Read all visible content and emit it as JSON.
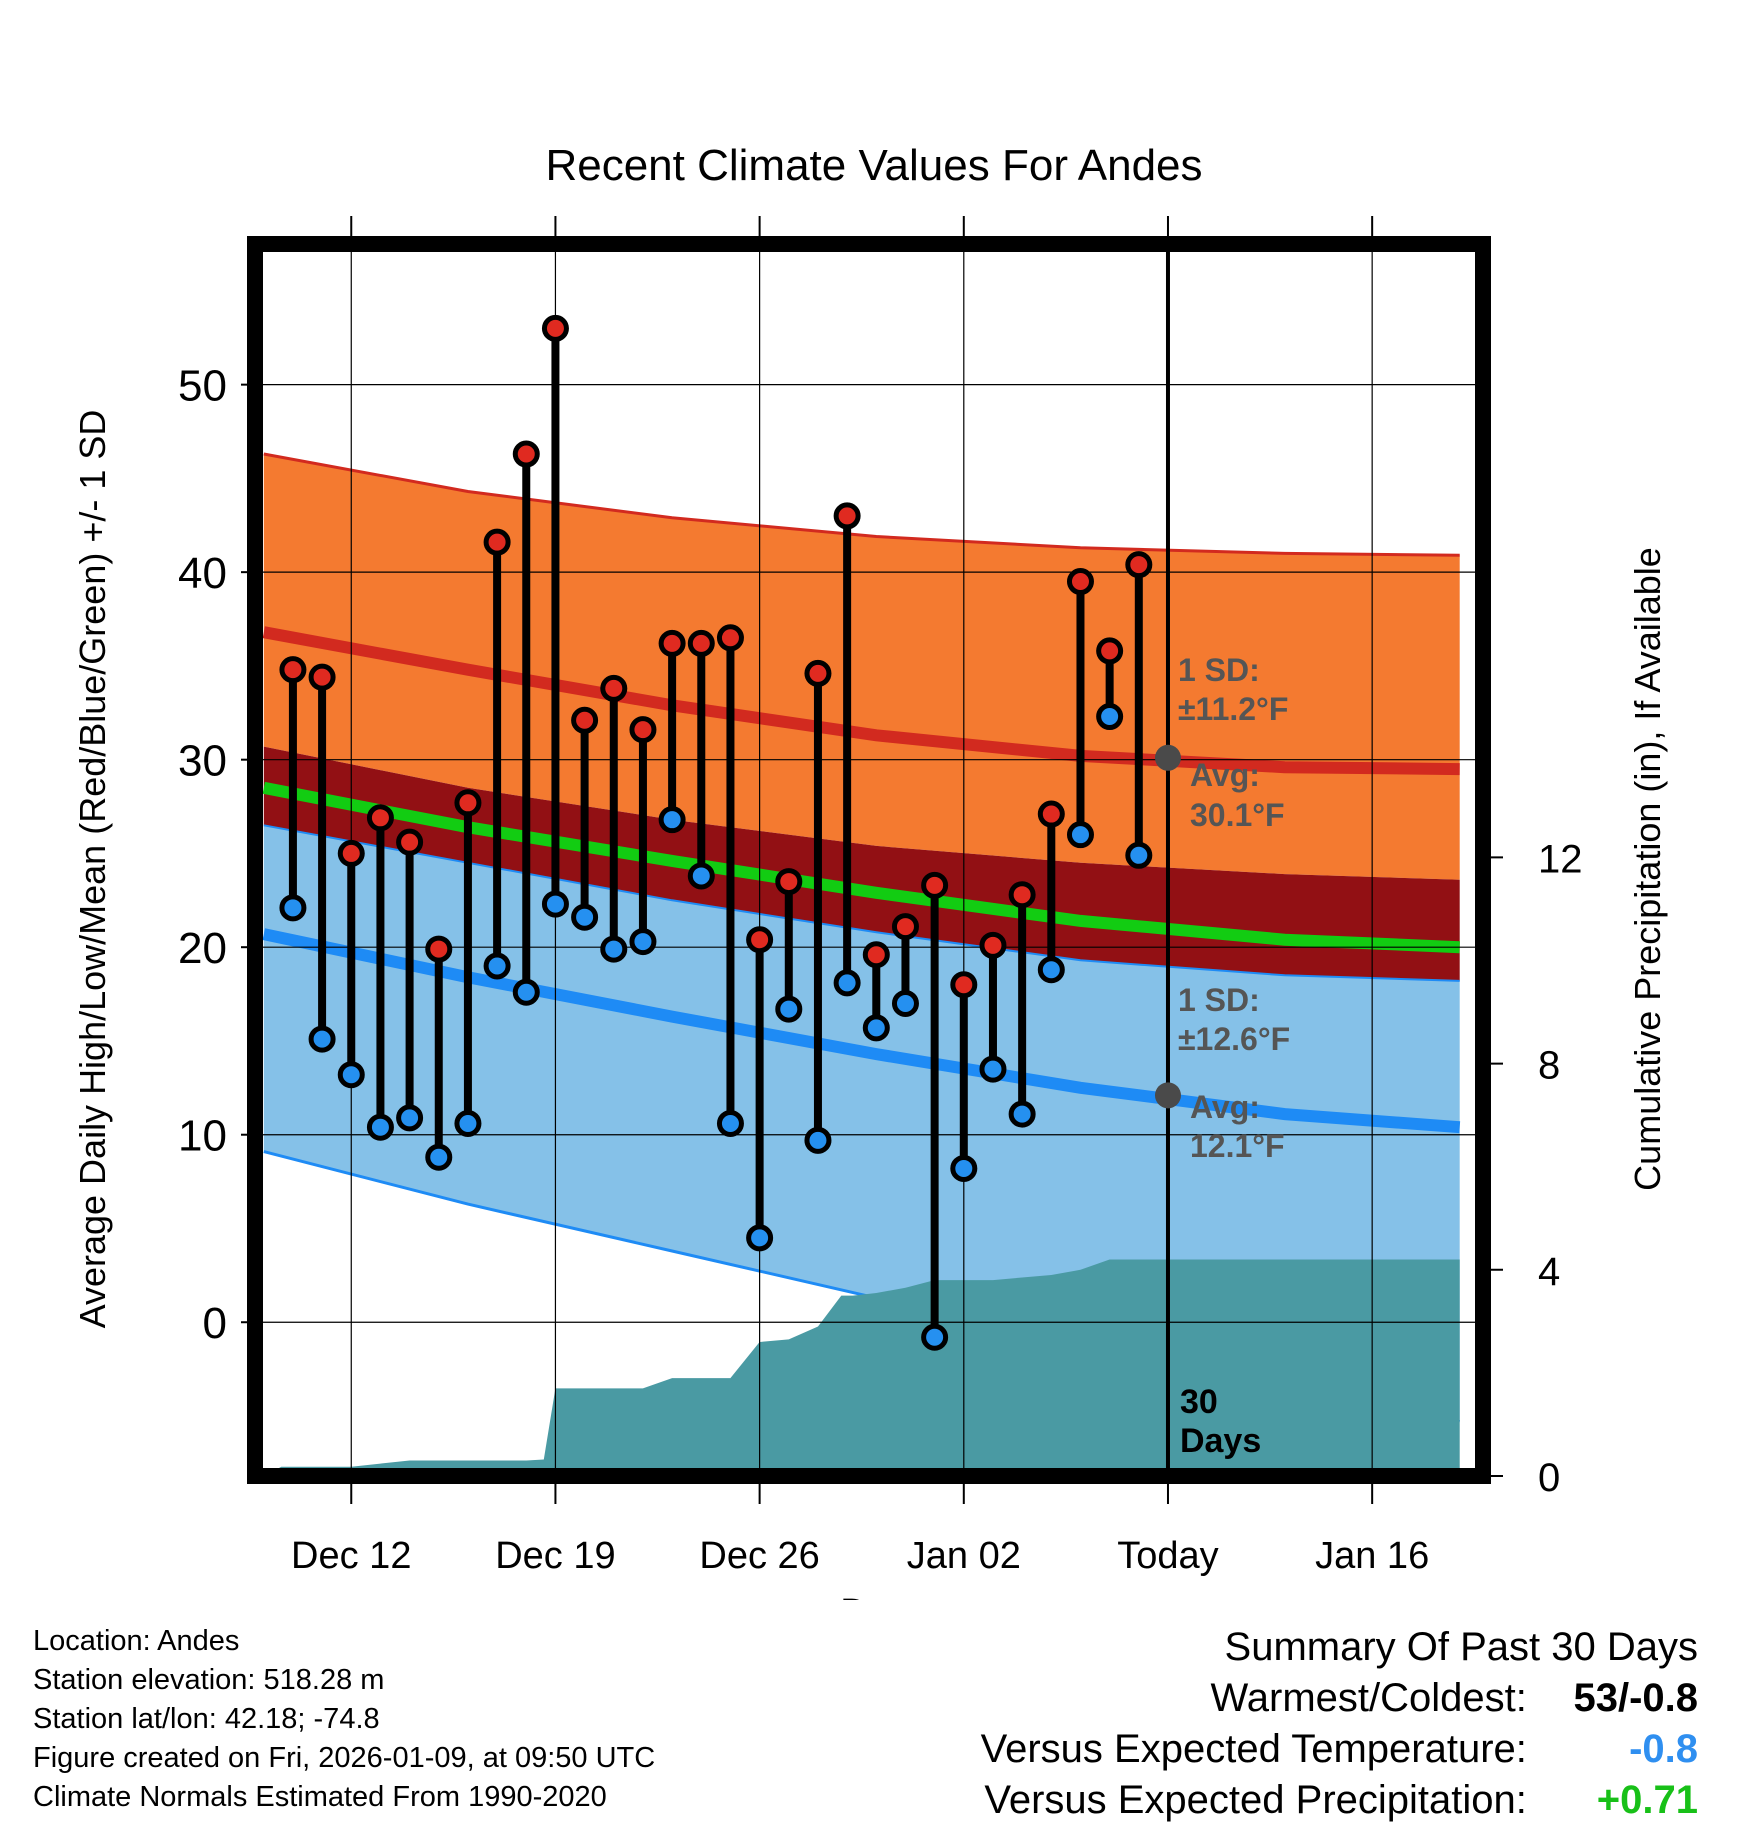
{
  "chart_data": {
    "type": "line",
    "title": "Recent Climate Values For Andes",
    "xlabel": "Day",
    "ylabel": "Average Daily High/Low/Mean (Red/Blue/Green) +/- 1 SD",
    "y2label": "Cumulative Precipitation (in), If Available",
    "x_ticks": [
      "Dec 12",
      "Dec 19",
      "Dec 26",
      "Jan 02",
      "Today",
      "Jan 16"
    ],
    "x_tick_days": [
      3,
      10,
      17,
      24,
      31,
      38
    ],
    "xlim": [
      -0.3,
      41.8
    ],
    "ylim": [
      -8.2,
      57.5
    ],
    "y_ticks": [
      0,
      10,
      20,
      30,
      40,
      50
    ],
    "y2lim": [
      0,
      23.9
    ],
    "y2_ticks": [
      0,
      4,
      8,
      12
    ],
    "today_day": 31,
    "days_label": "30 Days",
    "high_normal": {
      "x": [
        0,
        7,
        14,
        21,
        28,
        35,
        41
      ],
      "mean": [
        36.8,
        34.8,
        32.9,
        31.3,
        30.2,
        29.6,
        29.5
      ],
      "upper": [
        46.3,
        44.3,
        42.9,
        41.9,
        41.3,
        41.0,
        40.9
      ],
      "lower": [
        30.7,
        28.5,
        26.8,
        25.4,
        24.5,
        23.9,
        23.6
      ]
    },
    "low_normal": {
      "x": [
        0,
        7,
        14,
        21,
        28,
        35,
        41
      ],
      "mean": [
        20.7,
        18.4,
        16.3,
        14.3,
        12.5,
        11.1,
        10.4
      ],
      "upper": [
        26.5,
        24.5,
        22.5,
        20.8,
        19.3,
        18.5,
        18.2
      ],
      "lower": [
        9.1,
        6.3,
        3.8,
        1.3,
        -1.2,
        -3.5,
        -5.3
      ]
    },
    "mean_normal": {
      "x": [
        0,
        7,
        14,
        21,
        28,
        35,
        41
      ],
      "mean": [
        28.5,
        26.4,
        24.6,
        22.9,
        21.4,
        20.4,
        20.0
      ]
    },
    "days": [
      1,
      2,
      3,
      4,
      5,
      6,
      7,
      8,
      9,
      10,
      11,
      12,
      13,
      14,
      15,
      16,
      17,
      18,
      19,
      20,
      21,
      22,
      23,
      24,
      25,
      26,
      27,
      28,
      29,
      30
    ],
    "highs": [
      34.8,
      34.4,
      25.0,
      26.9,
      25.6,
      19.9,
      27.7,
      41.6,
      46.3,
      53.0,
      32.1,
      33.8,
      31.6,
      36.2,
      36.2,
      36.5,
      20.4,
      23.5,
      34.6,
      43.0,
      19.6,
      21.1,
      23.3,
      18.0,
      20.1,
      22.8,
      27.1,
      39.5,
      35.8,
      40.4
    ],
    "lows": [
      22.1,
      15.1,
      13.2,
      10.4,
      10.9,
      8.8,
      10.6,
      19.0,
      17.6,
      22.3,
      21.6,
      19.9,
      20.3,
      26.8,
      23.8,
      10.6,
      4.5,
      16.7,
      9.7,
      18.1,
      15.7,
      17.0,
      -0.8,
      8.2,
      13.5,
      11.1,
      18.8,
      26.0,
      32.3,
      24.9
    ],
    "precip": {
      "x": [
        0,
        0.6,
        3,
        4,
        5,
        6,
        7,
        8,
        9,
        9.6,
        10,
        11,
        12,
        13,
        14,
        15,
        16,
        17,
        18,
        19,
        19.8,
        20.2,
        21,
        22,
        23,
        24,
        25,
        26,
        27,
        28,
        29,
        30,
        31,
        41
      ],
      "cum": [
        0,
        0.18,
        0.18,
        0.24,
        0.3,
        0.3,
        0.3,
        0.3,
        0.3,
        0.32,
        1.7,
        1.7,
        1.7,
        1.7,
        1.9,
        1.9,
        1.9,
        2.6,
        2.65,
        2.9,
        3.5,
        3.5,
        3.55,
        3.65,
        3.8,
        3.8,
        3.8,
        3.85,
        3.9,
        4.0,
        4.2,
        4.2,
        4.2,
        4.2
      ]
    },
    "annotations": {
      "high_sd": "1 SD:",
      "high_sd_val": "±11.2°F",
      "high_avg": "Avg:",
      "high_avg_val": "30.1°F",
      "high_avg_value": 30.1,
      "low_sd": "1 SD:",
      "low_sd_val": "±12.6°F",
      "low_avg": "Avg:",
      "low_avg_val": "12.1°F",
      "low_avg_value": 12.1
    },
    "colors": {
      "high_band": "#f47a30",
      "high_line": "#d22a1f",
      "overlap_band": "#921014",
      "low_band": "#85c1e8",
      "low_line": "#1e8bf5",
      "mean_line": "#12cc12",
      "precip": "#4a9aa3",
      "high_dot": "#e02a20",
      "low_dot": "#2590f0",
      "annot": "#555555"
    }
  },
  "footer": {
    "location": "Location: Andes",
    "elevation": "Station elevation: 518.28 m",
    "latlon": "Station lat/lon: 42.18; -74.8",
    "created": "Figure created on Fri, 2026-01-09, at 09:50 UTC",
    "normals": "Climate Normals Estimated From 1990-2020"
  },
  "summary": {
    "title": "Summary Of Past 30 Days",
    "warm_cold_label": "Warmest/Coldest:",
    "warm_cold_value": "53/-0.8",
    "temp_label": "Versus Expected Temperature:",
    "temp_value": "-0.8",
    "temp_color": "#2f8ff0",
    "precip_label": "Versus Expected Precipitation:",
    "precip_value": "+0.71",
    "precip_color": "#18c018"
  }
}
